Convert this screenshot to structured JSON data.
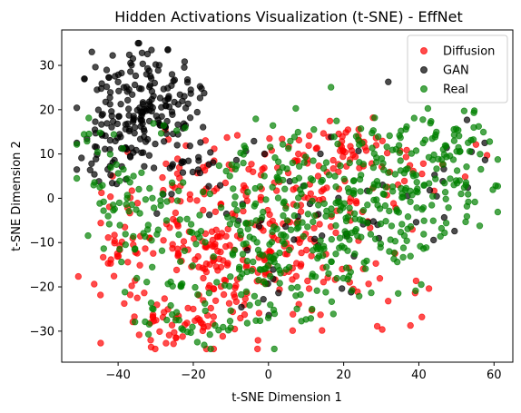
{
  "chart_data": {
    "type": "scatter",
    "title": "Hidden Activations Visualization (t-SNE) - EffNet",
    "xlabel": "t-SNE Dimension 1",
    "ylabel": "t-SNE Dimension 2",
    "xlim": [
      -55,
      65
    ],
    "ylim": [
      -37,
      38
    ],
    "xticks": [
      -40,
      -20,
      0,
      20,
      40,
      60
    ],
    "yticks": [
      -30,
      -20,
      -10,
      0,
      10,
      20,
      30
    ],
    "xtick_labels": [
      "−40",
      "−20",
      "0",
      "20",
      "40",
      "60"
    ],
    "ytick_labels": [
      "−30",
      "−20",
      "−10",
      "0",
      "10",
      "20",
      "30"
    ],
    "grid": false,
    "legend_position": "top-right",
    "series": [
      {
        "name": "Diffusion",
        "color": "#ff0000",
        "marker": "circle",
        "clusters": [
          {
            "center": [
              -20,
              -10
            ],
            "spread": [
              6,
              4
            ],
            "count": 50
          },
          {
            "center": [
              -25,
              -28
            ],
            "spread": [
              8,
              3
            ],
            "count": 45
          },
          {
            "center": [
              -40,
              -12
            ],
            "spread": [
              4,
              8
            ],
            "count": 35
          },
          {
            "center": [
              -10,
              -20
            ],
            "spread": [
              6,
              6
            ],
            "count": 30
          },
          {
            "center": [
              0,
              -10
            ],
            "spread": [
              10,
              8
            ],
            "count": 70
          },
          {
            "center": [
              10,
              0
            ],
            "spread": [
              10,
              7
            ],
            "count": 55
          },
          {
            "center": [
              15,
              10
            ],
            "spread": [
              10,
              4
            ],
            "count": 35
          },
          {
            "center": [
              25,
              12
            ],
            "spread": [
              5,
              3
            ],
            "count": 20
          },
          {
            "center": [
              5,
              -15
            ],
            "spread": [
              12,
              8
            ],
            "count": 40
          },
          {
            "center": [
              30,
              -10
            ],
            "spread": [
              8,
              8
            ],
            "count": 25
          },
          {
            "center": [
              40,
              8
            ],
            "spread": [
              6,
              4
            ],
            "count": 12
          },
          {
            "center": [
              -30,
              0
            ],
            "spread": [
              8,
              6
            ],
            "count": 25
          },
          {
            "center": [
              -15,
              8
            ],
            "spread": [
              8,
              5
            ],
            "count": 20
          }
        ]
      },
      {
        "name": "GAN",
        "color": "#000000",
        "marker": "circle",
        "clusters": [
          {
            "center": [
              -33,
              22
            ],
            "spread": [
              7,
              6
            ],
            "count": 150
          },
          {
            "center": [
              -42,
              10
            ],
            "spread": [
              4,
              4
            ],
            "count": 45
          },
          {
            "center": [
              -22,
              20
            ],
            "spread": [
              3,
              4
            ],
            "count": 20
          },
          {
            "center": [
              -25,
              8
            ],
            "spread": [
              8,
              3
            ],
            "count": 25
          },
          {
            "center": [
              0,
              -5
            ],
            "spread": [
              15,
              12
            ],
            "count": 30
          },
          {
            "center": [
              25,
              -5
            ],
            "spread": [
              15,
              12
            ],
            "count": 25
          },
          {
            "center": [
              45,
              5
            ],
            "spread": [
              6,
              5
            ],
            "count": 10
          }
        ]
      },
      {
        "name": "Real",
        "color": "#008000",
        "marker": "circle",
        "clusters": [
          {
            "center": [
              -30,
              -5
            ],
            "spread": [
              8,
              8
            ],
            "count": 60
          },
          {
            "center": [
              -20,
              -25
            ],
            "spread": [
              8,
              5
            ],
            "count": 45
          },
          {
            "center": [
              -5,
              -10
            ],
            "spread": [
              8,
              8
            ],
            "count": 70
          },
          {
            "center": [
              10,
              -15
            ],
            "spread": [
              10,
              8
            ],
            "count": 70
          },
          {
            "center": [
              20,
              0
            ],
            "spread": [
              10,
              8
            ],
            "count": 75
          },
          {
            "center": [
              35,
              5
            ],
            "spread": [
              10,
              8
            ],
            "count": 90
          },
          {
            "center": [
              45,
              12
            ],
            "spread": [
              8,
              4
            ],
            "count": 50
          },
          {
            "center": [
              50,
              0
            ],
            "spread": [
              6,
              6
            ],
            "count": 25
          },
          {
            "center": [
              30,
              -10
            ],
            "spread": [
              8,
              7
            ],
            "count": 45
          },
          {
            "center": [
              5,
              8
            ],
            "spread": [
              10,
              5
            ],
            "count": 40
          },
          {
            "center": [
              -40,
              2
            ],
            "spread": [
              5,
              6
            ],
            "count": 25
          },
          {
            "center": [
              -46,
              13
            ],
            "spread": [
              3,
              2
            ],
            "count": 8
          }
        ]
      }
    ]
  }
}
